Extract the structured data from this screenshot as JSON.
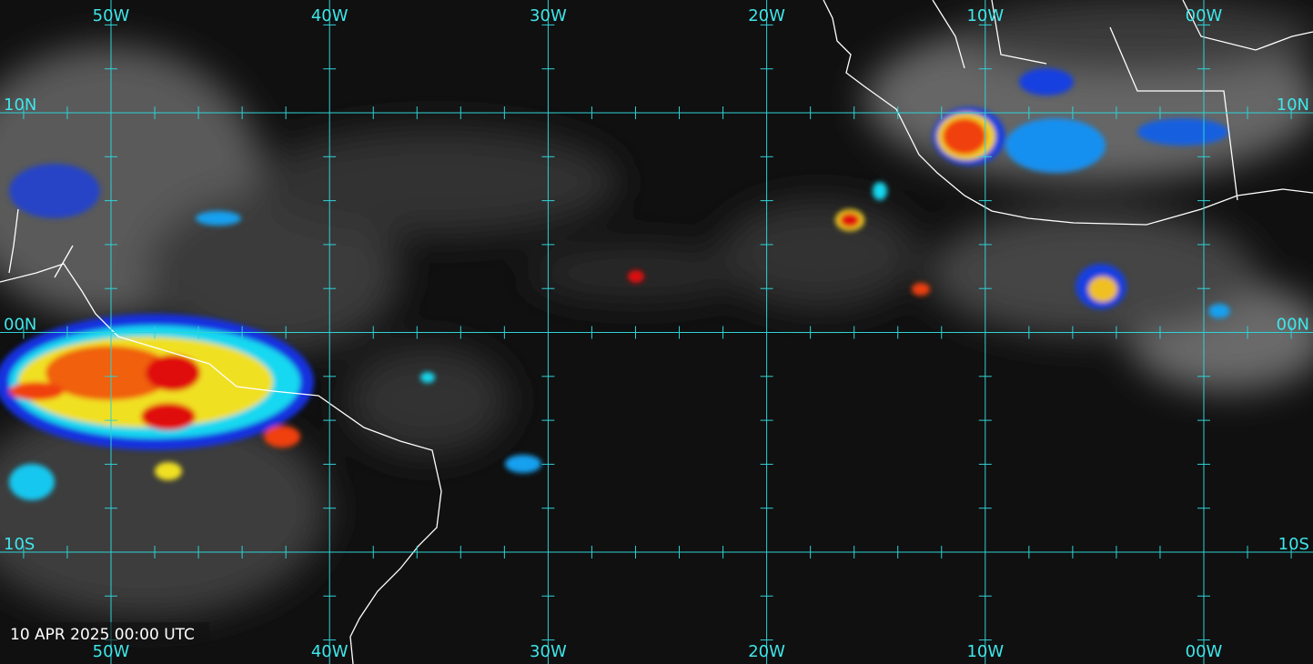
{
  "map": {
    "longitude_labels": [
      "50W",
      "40W",
      "30W",
      "20W",
      "10W",
      "00W"
    ],
    "latitude_labels": [
      "10N",
      "00N",
      "10S"
    ],
    "timestamp": "10 APR 2025 00:00 UTC"
  }
}
